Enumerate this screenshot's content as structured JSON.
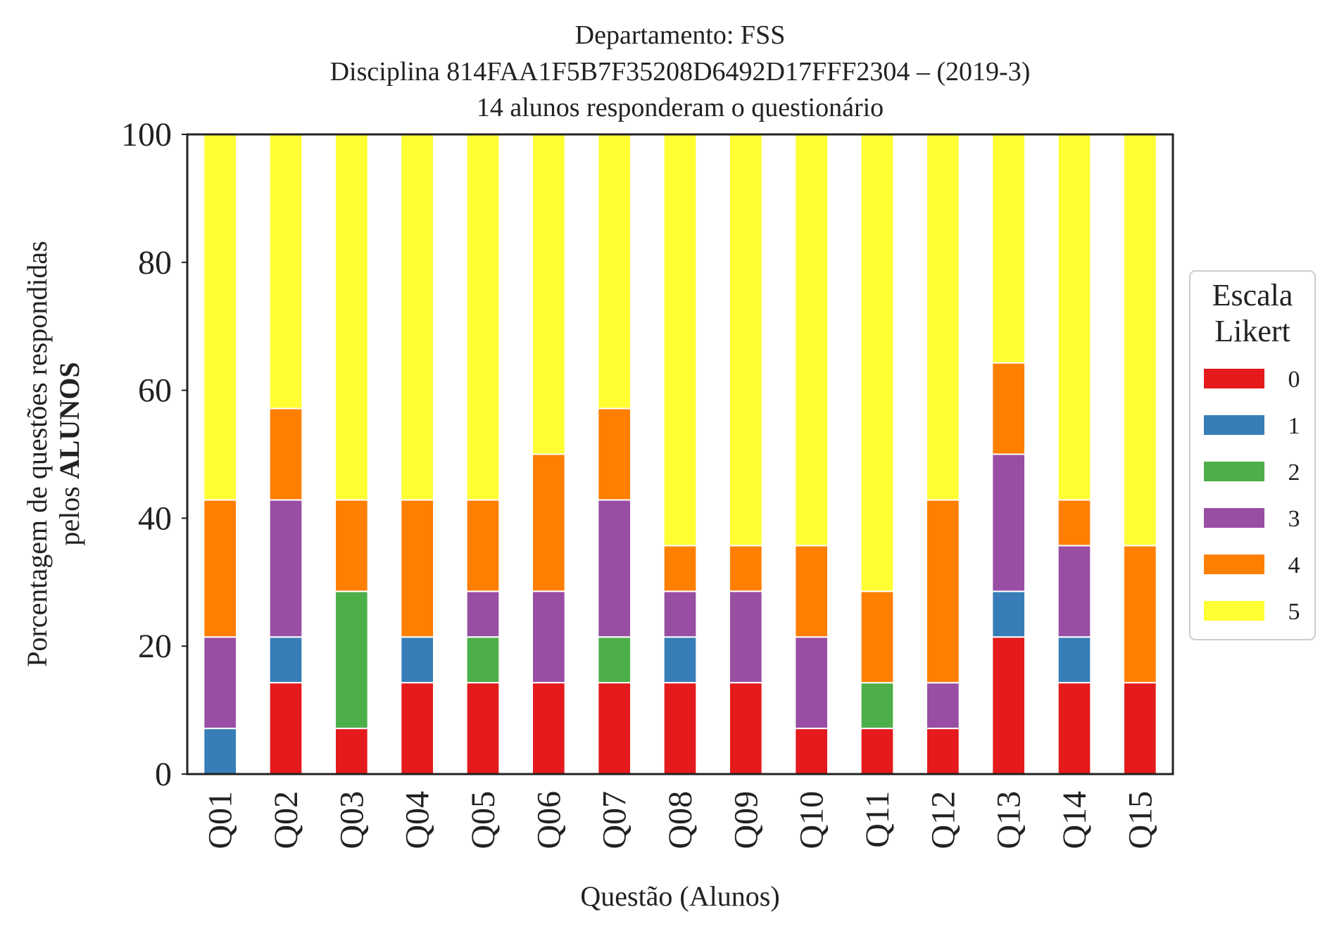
{
  "chart_data": {
    "type": "bar",
    "stacked": true,
    "title_lines": [
      "Departamento: FSS",
      "Disciplina 814FAA1F5B7F35208D6492D17FFF2304 – (2019-3)",
      "14 alunos responderam o questionário"
    ],
    "xlabel": "Questão (Alunos)",
    "ylabel_line1": "Porcentagem de questões respondidas",
    "ylabel_line2_prefix": "pelos ",
    "ylabel_line2_bold": "ALUNOS",
    "ylim": [
      0,
      100
    ],
    "yticks": [
      "0",
      "20",
      "40",
      "60",
      "80",
      "100"
    ],
    "grid": false,
    "legend": {
      "title_lines": [
        "Escala",
        "Likert"
      ],
      "placement": "right"
    },
    "categories": [
      "Q01",
      "Q02",
      "Q03",
      "Q04",
      "Q05",
      "Q06",
      "Q07",
      "Q08",
      "Q09",
      "Q10",
      "Q11",
      "Q12",
      "Q13",
      "Q14",
      "Q15"
    ],
    "series": [
      {
        "name": "0",
        "color": "#e41a1c",
        "values": [
          0,
          14.29,
          7.14,
          14.29,
          14.29,
          14.29,
          14.29,
          14.29,
          14.29,
          7.14,
          7.14,
          7.14,
          21.43,
          14.29,
          14.29
        ]
      },
      {
        "name": "1",
        "color": "#377eb8",
        "values": [
          7.14,
          7.14,
          0,
          7.14,
          0,
          0,
          0,
          7.14,
          0,
          0,
          0,
          0,
          7.14,
          7.14,
          0
        ]
      },
      {
        "name": "2",
        "color": "#4daf4a",
        "values": [
          0,
          0,
          21.43,
          0,
          7.14,
          0,
          7.14,
          0,
          0,
          0,
          7.14,
          0,
          0,
          0,
          0
        ]
      },
      {
        "name": "3",
        "color": "#984ea3",
        "values": [
          14.29,
          21.43,
          0,
          0,
          7.14,
          14.29,
          21.43,
          7.14,
          14.29,
          14.29,
          0,
          7.14,
          21.43,
          14.29,
          0
        ]
      },
      {
        "name": "4",
        "color": "#ff7f00",
        "values": [
          21.43,
          14.29,
          14.29,
          21.43,
          14.29,
          21.43,
          14.29,
          7.14,
          7.14,
          14.29,
          14.29,
          28.57,
          14.29,
          7.14,
          21.43
        ]
      },
      {
        "name": "5",
        "color": "#ffff33",
        "values": [
          57.14,
          42.86,
          57.14,
          57.14,
          57.14,
          50.0,
          42.86,
          64.29,
          64.29,
          64.29,
          71.43,
          57.14,
          35.71,
          57.14,
          64.29
        ]
      }
    ]
  }
}
